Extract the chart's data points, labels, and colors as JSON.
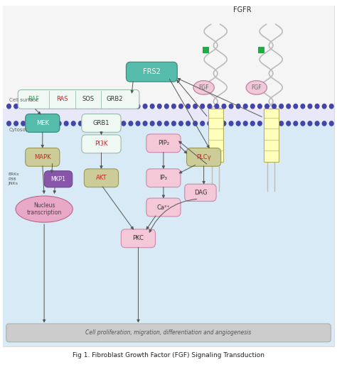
{
  "title": "Fig 1. Fibroblast Growth Factor (FGF) Signaling Transduction",
  "bg_color": "#ffffff",
  "cytosol_color": "#d8eaf5",
  "extracell_color": "#f5f5f5",
  "cell_surface_label": "Cell surface",
  "cytosol_label": "Cytosol",
  "membrane_color": "#4444aa",
  "fgf_color": "#f0c8d8",
  "fgf_border": "#bb7799",
  "receptor_square_color": "#22aa44",
  "receptor_yellow_fill": "#ffffbb",
  "receptor_yellow_border": "#aaaa55",
  "green_box_fill": "#55bbaa",
  "green_box_border": "#338877",
  "green_box_text": "#ffffff",
  "white_box_fill": "#f0f8f4",
  "white_box_border": "#99bbaa",
  "white_box_text": "#333333",
  "red_text_color": "#cc2222",
  "green_text_color": "#33aa55",
  "pink_box_fill": "#f5c8d8",
  "pink_box_border": "#cc88aa",
  "pink_box_text": "#333333",
  "olive_box_fill": "#cccc99",
  "olive_box_border": "#999955",
  "olive_box_text": "#cc2222",
  "purple_box_fill": "#8855aa",
  "purple_box_border": "#664488",
  "purple_box_text": "#ffffff",
  "pink_ellipse_fill": "#e8a8c8",
  "pink_ellipse_border": "#bb6688",
  "bottom_bar_fill": "#cccccc",
  "bottom_bar_border": "#aaaaaa",
  "bottom_bar_text": "#555555",
  "arrow_color": "#555555",
  "coil_color": "#bbbbbb"
}
